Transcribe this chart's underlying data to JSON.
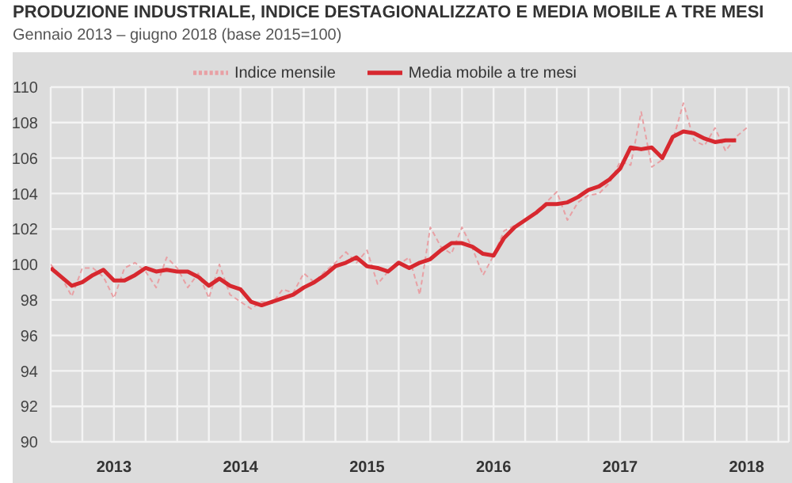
{
  "chart_data": {
    "type": "line",
    "title": "PRODUZIONE INDUSTRIALE, INDICE DESTAGIONALIZZATO E MEDIA MOBILE A TRE MESI",
    "subtitle": "Gennaio 2013 – giugno 2018 (base 2015=100)",
    "x": [
      "2013-01",
      "2013-02",
      "2013-03",
      "2013-04",
      "2013-05",
      "2013-06",
      "2013-07",
      "2013-08",
      "2013-09",
      "2013-10",
      "2013-11",
      "2013-12",
      "2014-01",
      "2014-02",
      "2014-03",
      "2014-04",
      "2014-05",
      "2014-06",
      "2014-07",
      "2014-08",
      "2014-09",
      "2014-10",
      "2014-11",
      "2014-12",
      "2015-01",
      "2015-02",
      "2015-03",
      "2015-04",
      "2015-05",
      "2015-06",
      "2015-07",
      "2015-08",
      "2015-09",
      "2015-10",
      "2015-11",
      "2015-12",
      "2016-01",
      "2016-02",
      "2016-03",
      "2016-04",
      "2016-05",
      "2016-06",
      "2016-07",
      "2016-08",
      "2016-09",
      "2016-10",
      "2016-11",
      "2016-12",
      "2017-01",
      "2017-02",
      "2017-03",
      "2017-04",
      "2017-05",
      "2017-06",
      "2017-07",
      "2017-08",
      "2017-09",
      "2017-10",
      "2017-11",
      "2017-12",
      "2018-01",
      "2018-02",
      "2018-03",
      "2018-04",
      "2018-05",
      "2018-06",
      "2018-07"
    ],
    "series": [
      {
        "name": "Indice mensile",
        "color": "#e8a0a4",
        "line_style": "dashed",
        "values": [
          100.0,
          99.3,
          98.2,
          99.8,
          99.8,
          99.3,
          98.1,
          99.8,
          100.1,
          99.6,
          98.7,
          100.4,
          99.8,
          98.7,
          99.5,
          98.1,
          100.0,
          98.3,
          97.9,
          97.5,
          97.9,
          97.8,
          98.6,
          98.4,
          99.5,
          99.0,
          99.6,
          100.1,
          100.7,
          100.1,
          100.8,
          98.9,
          99.6,
          100.0,
          100.4,
          98.3,
          102.1,
          101.0,
          100.6,
          102.1,
          100.9,
          99.4,
          100.5,
          101.9,
          102.2,
          102.5,
          103.0,
          103.5,
          104.1,
          102.5,
          103.5,
          103.9,
          104.0,
          104.6,
          105.8,
          105.6,
          108.6,
          105.5,
          105.9,
          107.0,
          109.1,
          107.0,
          106.7,
          107.7,
          106.4,
          107.2,
          107.7
        ]
      },
      {
        "name": "Media mobile a tre mesi",
        "color": "#d7282f",
        "line_style": "solid",
        "values": [
          99.8,
          99.3,
          98.8,
          99.0,
          99.4,
          99.7,
          99.1,
          99.1,
          99.4,
          99.8,
          99.6,
          99.7,
          99.6,
          99.6,
          99.3,
          98.8,
          99.2,
          98.8,
          98.6,
          97.9,
          97.7,
          97.9,
          98.1,
          98.3,
          98.7,
          99.0,
          99.4,
          99.9,
          100.1,
          100.4,
          99.9,
          99.8,
          99.6,
          100.1,
          99.8,
          100.1,
          100.3,
          100.8,
          101.2,
          101.2,
          101.0,
          100.6,
          100.5,
          101.5,
          102.1,
          102.5,
          102.9,
          103.4,
          103.4,
          103.5,
          103.8,
          104.2,
          104.4,
          104.8,
          105.4,
          106.6,
          106.5,
          106.6,
          106.0,
          107.2,
          107.5,
          107.4,
          107.1,
          106.9,
          107.0,
          107.0,
          null
        ]
      }
    ],
    "xlim": [
      "2013-01",
      "2018-11"
    ],
    "xticks": [
      {
        "value": "2013-01",
        "label": null
      },
      {
        "value": "2013-04",
        "label": null
      },
      {
        "value": "2013-07",
        "label": "2013"
      },
      {
        "value": "2013-10",
        "label": null
      },
      {
        "value": "2014-01",
        "label": null
      },
      {
        "value": "2014-04",
        "label": null
      },
      {
        "value": "2014-07",
        "label": "2014"
      },
      {
        "value": "2014-10",
        "label": null
      },
      {
        "value": "2015-01",
        "label": null
      },
      {
        "value": "2015-04",
        "label": null
      },
      {
        "value": "2015-07",
        "label": "2015"
      },
      {
        "value": "2015-10",
        "label": null
      },
      {
        "value": "2016-01",
        "label": null
      },
      {
        "value": "2016-04",
        "label": null
      },
      {
        "value": "2016-07",
        "label": "2016"
      },
      {
        "value": "2016-10",
        "label": null
      },
      {
        "value": "2017-01",
        "label": null
      },
      {
        "value": "2017-04",
        "label": null
      },
      {
        "value": "2017-07",
        "label": "2017"
      },
      {
        "value": "2017-10",
        "label": null
      },
      {
        "value": "2018-01",
        "label": null
      },
      {
        "value": "2018-04",
        "label": null
      },
      {
        "value": "2018-07",
        "label": "2018"
      },
      {
        "value": "2018-10",
        "label": null
      }
    ],
    "ylim": [
      90,
      110
    ],
    "yticks": [
      90,
      92,
      94,
      96,
      98,
      100,
      102,
      104,
      106,
      108,
      110
    ],
    "grid": true,
    "legend": "top",
    "marker": "none"
  }
}
